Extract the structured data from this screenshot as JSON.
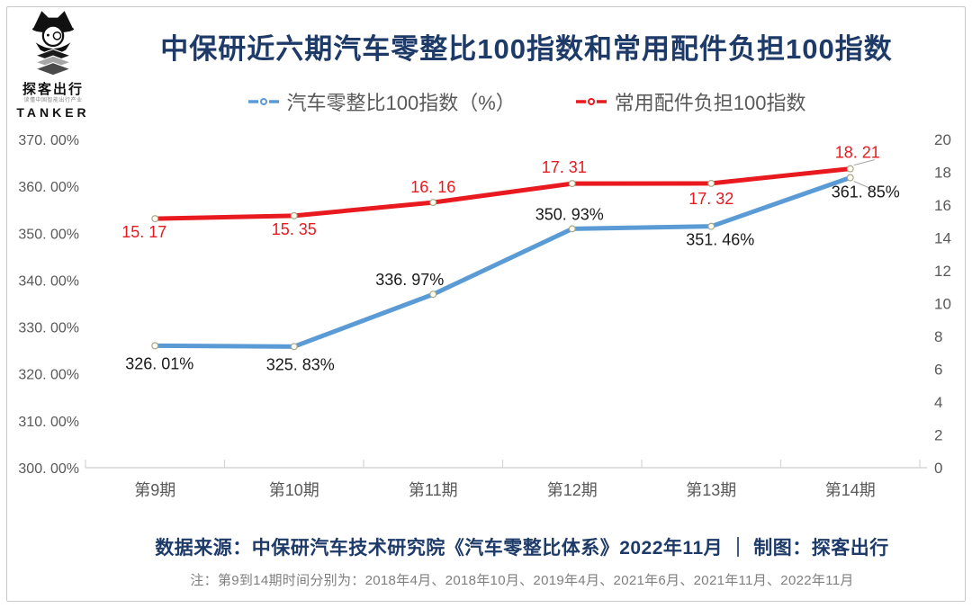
{
  "brand": {
    "name": "探客出行",
    "tagline": "读懂中国智能出行产业",
    "latin": "TANKER"
  },
  "title": "中保研近六期汽车零整比100指数和常用配件负担100指数",
  "chart_data": {
    "type": "line",
    "title": "中保研近六期汽车零整比100指数和常用配件负担100指数",
    "categories": [
      "第9期",
      "第10期",
      "第11期",
      "第12期",
      "第13期",
      "第14期"
    ],
    "series": [
      {
        "name": "汽车零整比100指数（%）",
        "axis": "left",
        "color": "#5b9bd5",
        "values": [
          326.01,
          325.83,
          336.97,
          350.93,
          351.46,
          361.85
        ],
        "point_labels": [
          "326. 01%",
          "325. 83%",
          "336. 97%",
          "350. 93%",
          "351. 46%",
          "361. 85%"
        ],
        "label_color": "#1a1a1a",
        "label_offsets": [
          [
            5,
            26
          ],
          [
            7,
            26
          ],
          [
            -26,
            -10
          ],
          [
            -3,
            -10
          ],
          [
            10,
            21
          ],
          [
            17,
            22
          ]
        ],
        "leader_last": true
      },
      {
        "name": "常用配件负担100指数",
        "axis": "right",
        "color": "#e8191f",
        "values": [
          15.17,
          15.35,
          16.16,
          17.31,
          17.32,
          18.21
        ],
        "point_labels": [
          "15. 17",
          "15. 35",
          "16. 16",
          "17. 31",
          "17. 32",
          "18. 21"
        ],
        "label_color": "#e8191f",
        "label_offsets": [
          [
            -12,
            21
          ],
          [
            0,
            21
          ],
          [
            0,
            -11
          ],
          [
            -9,
            -12
          ],
          [
            0,
            23
          ],
          [
            8,
            -12
          ]
        ],
        "leader_last": true
      }
    ],
    "left_axis": {
      "min": 300,
      "max": 370,
      "step": 10,
      "tick_labels": [
        "300. 00%",
        "310. 00%",
        "320. 00%",
        "330. 00%",
        "340. 00%",
        "350. 00%",
        "360. 00%",
        "370. 00%"
      ]
    },
    "right_axis": {
      "min": 0,
      "max": 20,
      "step": 2,
      "tick_labels": [
        "0",
        "2",
        "4",
        "6",
        "8",
        "10",
        "12",
        "14",
        "16",
        "18",
        "20"
      ]
    },
    "grid": false,
    "legend_position": "top"
  },
  "footer": {
    "source_line": "数据来源：中保研汽车技术研究院《汽车零整比体系》2022年11月 ｜ 制图：探客出行",
    "note_line": "注：第9到14期时间分别为：2018年4月、2018年10月、2019年4月、2021年6月、2021年11月、2022年11月"
  }
}
